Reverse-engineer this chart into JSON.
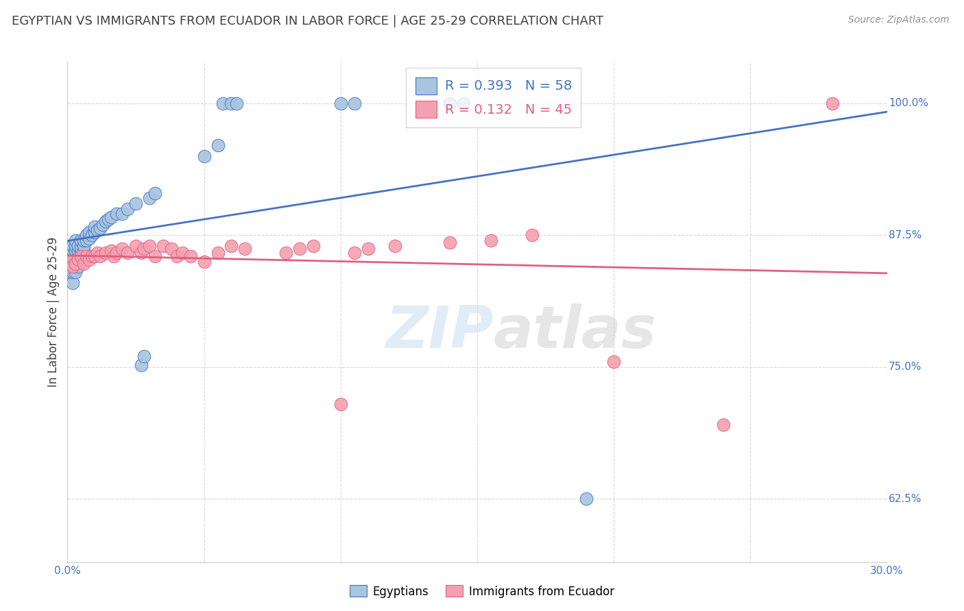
{
  "title": "EGYPTIAN VS IMMIGRANTS FROM ECUADOR IN LABOR FORCE | AGE 25-29 CORRELATION CHART",
  "source": "Source: ZipAtlas.com",
  "ylabel": "In Labor Force | Age 25-29",
  "watermark": "ZIPatlas",
  "xlim": [
    0.0,
    0.3
  ],
  "ylim": [
    0.565,
    1.04
  ],
  "ytick_vals": [
    0.625,
    0.75,
    0.875,
    1.0
  ],
  "ytick_labels": [
    "62.5%",
    "75.0%",
    "87.5%",
    "100.0%"
  ],
  "xtick_vals": [
    0.0,
    0.05,
    0.1,
    0.15,
    0.2,
    0.25,
    0.3
  ],
  "xtick_labels": [
    "0.0%",
    "",
    "",
    "",
    "",
    "",
    "30.0%"
  ],
  "legend_blue_label": "Egyptians",
  "legend_pink_label": "Immigrants from Ecuador",
  "R_blue": 0.393,
  "N_blue": 58,
  "R_pink": 0.132,
  "N_pink": 45,
  "blue_fill": "#a8c4e0",
  "pink_fill": "#f4a0b0",
  "blue_edge": "#4472c4",
  "pink_edge": "#e06080",
  "blue_line": "#4472c4",
  "pink_line": "#e06080",
  "title_color": "#404040",
  "ylabel_color": "#404040",
  "tick_color": "#4472c4",
  "bg_color": "#ffffff",
  "grid_color": "#d8d8d8",
  "blue_scatter_x": [
    0.001,
    0.001,
    0.001,
    0.001,
    0.002,
    0.002,
    0.002,
    0.002,
    0.002,
    0.002,
    0.003,
    0.003,
    0.003,
    0.003,
    0.003,
    0.003,
    0.004,
    0.004,
    0.004,
    0.004,
    0.005,
    0.005,
    0.005,
    0.005,
    0.006,
    0.006,
    0.006,
    0.007,
    0.007,
    0.008,
    0.008,
    0.009,
    0.01,
    0.01,
    0.011,
    0.012,
    0.013,
    0.014,
    0.015,
    0.016,
    0.018,
    0.02,
    0.022,
    0.025,
    0.027,
    0.028,
    0.03,
    0.032,
    0.05,
    0.055,
    0.057,
    0.06,
    0.062,
    0.1,
    0.105,
    0.14,
    0.145,
    0.19
  ],
  "blue_scatter_y": [
    0.84,
    0.845,
    0.85,
    0.855,
    0.83,
    0.84,
    0.85,
    0.855,
    0.86,
    0.865,
    0.84,
    0.85,
    0.855,
    0.86,
    0.865,
    0.87,
    0.845,
    0.855,
    0.86,
    0.865,
    0.85,
    0.858,
    0.863,
    0.87,
    0.86,
    0.865,
    0.87,
    0.87,
    0.875,
    0.872,
    0.878,
    0.875,
    0.878,
    0.883,
    0.88,
    0.882,
    0.885,
    0.888,
    0.89,
    0.892,
    0.895,
    0.895,
    0.9,
    0.905,
    0.752,
    0.76,
    0.91,
    0.915,
    0.95,
    0.96,
    1.0,
    1.0,
    1.0,
    1.0,
    1.0,
    1.0,
    1.0,
    0.625
  ],
  "pink_scatter_x": [
    0.001,
    0.002,
    0.003,
    0.004,
    0.005,
    0.006,
    0.007,
    0.008,
    0.009,
    0.01,
    0.011,
    0.012,
    0.014,
    0.016,
    0.017,
    0.018,
    0.02,
    0.022,
    0.025,
    0.027,
    0.028,
    0.03,
    0.032,
    0.035,
    0.038,
    0.04,
    0.042,
    0.045,
    0.05,
    0.055,
    0.06,
    0.065,
    0.08,
    0.085,
    0.09,
    0.1,
    0.105,
    0.11,
    0.12,
    0.14,
    0.155,
    0.17,
    0.2,
    0.24,
    0.28
  ],
  "pink_scatter_y": [
    0.85,
    0.845,
    0.848,
    0.852,
    0.855,
    0.848,
    0.855,
    0.852,
    0.855,
    0.855,
    0.858,
    0.855,
    0.858,
    0.86,
    0.855,
    0.858,
    0.862,
    0.858,
    0.865,
    0.858,
    0.862,
    0.865,
    0.855,
    0.865,
    0.862,
    0.855,
    0.858,
    0.855,
    0.85,
    0.858,
    0.865,
    0.862,
    0.858,
    0.862,
    0.865,
    0.715,
    0.858,
    0.862,
    0.865,
    0.868,
    0.87,
    0.875,
    0.755,
    0.695,
    1.0
  ]
}
